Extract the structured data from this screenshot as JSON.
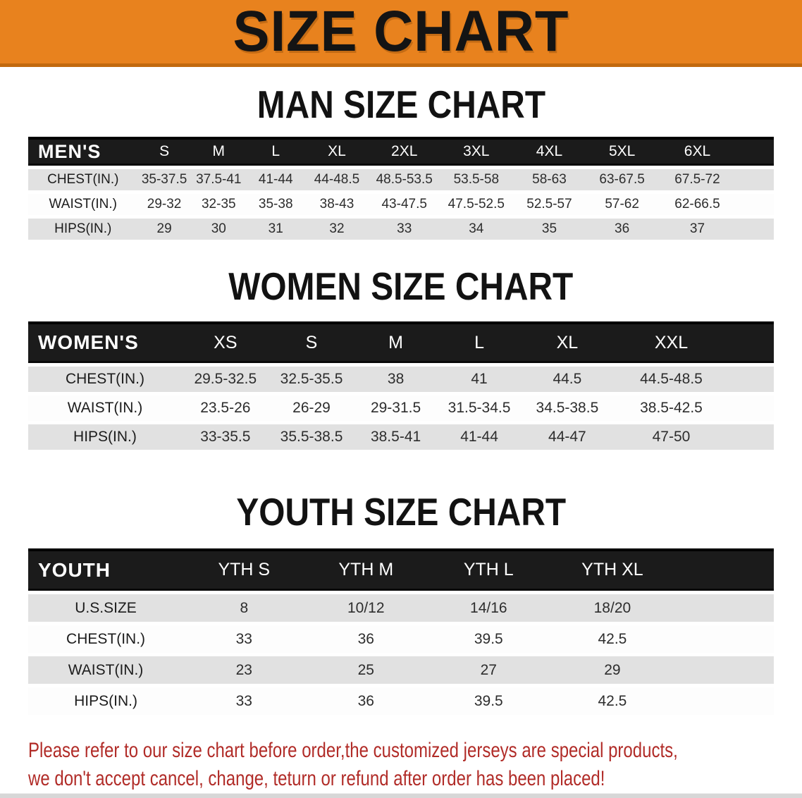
{
  "banner": {
    "title": "SIZE CHART",
    "bg_color": "#e8821e",
    "edge_color": "#c2690e",
    "text_color": "#141414"
  },
  "sections": [
    {
      "id": "men",
      "heading": "MAN SIZE CHART",
      "table": {
        "header": [
          "MEN'S",
          "S",
          "M",
          "L",
          "XL",
          "2XL",
          "3XL",
          "4XL",
          "5XL",
          "6XL"
        ],
        "rows": [
          [
            "CHEST(IN.)",
            "35-37.5",
            "37.5-41",
            "41-44",
            "44-48.5",
            "48.5-53.5",
            "53.5-58",
            "58-63",
            "63-67.5",
            "67.5-72"
          ],
          [
            "WAIST(IN.)",
            "29-32",
            "32-35",
            "35-38",
            "38-43",
            "43-47.5",
            "47.5-52.5",
            "52.5-57",
            "57-62",
            "62-66.5"
          ],
          [
            "HIPS(IN.)",
            "29",
            "30",
            "31",
            "32",
            "33",
            "34",
            "35",
            "36",
            "37"
          ]
        ]
      }
    },
    {
      "id": "women",
      "heading": "WOMEN SIZE CHART",
      "table": {
        "header": [
          "WOMEN'S",
          "XS",
          "S",
          "M",
          "L",
          "XL",
          "XXL"
        ],
        "rows": [
          [
            "CHEST(IN.)",
            "29.5-32.5",
            "32.5-35.5",
            "38",
            "41",
            "44.5",
            "44.5-48.5"
          ],
          [
            "WAIST(IN.)",
            "23.5-26",
            "26-29",
            "29-31.5",
            "31.5-34.5",
            "34.5-38.5",
            "38.5-42.5"
          ],
          [
            "HIPS(IN.)",
            "33-35.5",
            "35.5-38.5",
            "38.5-41",
            "41-44",
            "44-47",
            "47-50"
          ]
        ]
      }
    },
    {
      "id": "youth",
      "heading": "YOUTH SIZE CHART",
      "table": {
        "header": [
          "YOUTH",
          "YTH S",
          "YTH M",
          "YTH L",
          "YTH XL"
        ],
        "rows": [
          [
            "U.S.SIZE",
            "8",
            "10/12",
            "14/16",
            "18/20"
          ],
          [
            "CHEST(IN.)",
            "33",
            "36",
            "39.5",
            "42.5"
          ],
          [
            "WAIST(IN.)",
            "23",
            "25",
            "27",
            "29"
          ],
          [
            "HIPS(IN.)",
            "33",
            "36",
            "39.5",
            "42.5"
          ]
        ]
      }
    }
  ],
  "footer": {
    "line1": "Please refer to our size chart before order,the customized jerseys are special products,",
    "line2": "we don't accept cancel, change, teturn or refund after order has been placed!",
    "text_color": "#b12c28"
  },
  "colors": {
    "table_header_bg": "#1b1b1b",
    "table_header_text": "#ffffff",
    "row_shaded": "#e1e1e1",
    "row_plain": "#fdfdfd",
    "cell_text": "#2d2d2d"
  }
}
